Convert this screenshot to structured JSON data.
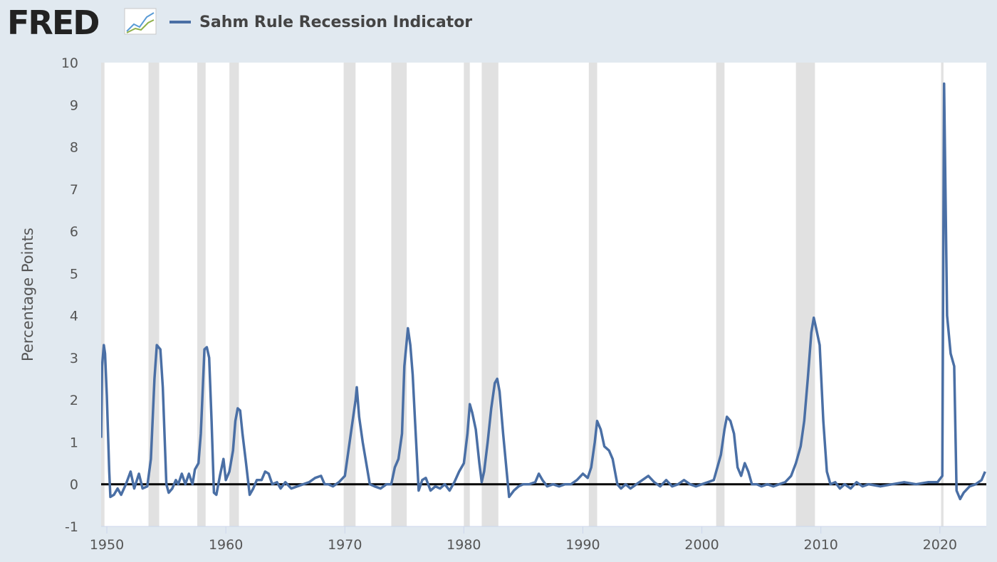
{
  "logo": "FRED",
  "chart_data": {
    "type": "line",
    "y_label": "Percentage Points",
    "xlim": [
      1949.52,
      2023.9
    ],
    "ylim": [
      -1,
      10
    ],
    "xticks": [
      1950,
      1960,
      1970,
      1980,
      1990,
      2000,
      2010,
      2020
    ],
    "yticks": [
      -1,
      0,
      1,
      2,
      3,
      4,
      5,
      6,
      7,
      8,
      9,
      10
    ],
    "grid": false,
    "legend": "top",
    "recessions": [
      [
        1948.9,
        1949.8
      ],
      [
        1953.5,
        1954.4
      ],
      [
        1957.6,
        1958.3
      ],
      [
        1960.3,
        1961.1
      ],
      [
        1969.9,
        1970.9
      ],
      [
        1973.9,
        1975.2
      ],
      [
        1980.0,
        1980.5
      ],
      [
        1981.5,
        1982.9
      ],
      [
        1990.5,
        1991.2
      ],
      [
        2001.2,
        2001.9
      ],
      [
        2007.9,
        2009.5
      ],
      [
        2020.1,
        2020.3
      ]
    ],
    "recession_color": "#e1e1e1",
    "x": [
      1949.52,
      1949.6,
      1949.75,
      1949.85,
      1950.0,
      1950.2,
      1950.3,
      1950.6,
      1950.9,
      1951.2,
      1951.6,
      1952.0,
      1952.3,
      1952.7,
      1953.0,
      1953.4,
      1953.7,
      1954.0,
      1954.2,
      1954.5,
      1954.7,
      1955.0,
      1955.2,
      1955.5,
      1955.8,
      1956.0,
      1956.3,
      1956.6,
      1956.9,
      1957.2,
      1957.4,
      1957.7,
      1957.9,
      1958.2,
      1958.4,
      1958.6,
      1958.8,
      1959.0,
      1959.2,
      1959.5,
      1959.8,
      1960.0,
      1960.3,
      1960.6,
      1960.8,
      1961.0,
      1961.2,
      1961.4,
      1961.7,
      1962.0,
      1962.3,
      1962.6,
      1963.0,
      1963.3,
      1963.6,
      1963.9,
      1964.3,
      1964.6,
      1965.0,
      1965.5,
      1966.0,
      1966.5,
      1967.0,
      1967.5,
      1968.0,
      1968.3,
      1968.6,
      1969.0,
      1969.5,
      1970.0,
      1970.3,
      1970.6,
      1970.9,
      1971.0,
      1971.2,
      1971.5,
      1971.8,
      1972.1,
      1972.5,
      1973.0,
      1973.5,
      1973.9,
      1974.2,
      1974.5,
      1974.8,
      1975.0,
      1975.3,
      1975.5,
      1975.7,
      1975.9,
      1976.2,
      1976.5,
      1976.8,
      1977.2,
      1977.6,
      1978.0,
      1978.4,
      1978.8,
      1979.2,
      1979.6,
      1980.0,
      1980.3,
      1980.5,
      1980.7,
      1981.0,
      1981.3,
      1981.5,
      1981.7,
      1982.0,
      1982.3,
      1982.6,
      1982.8,
      1983.0,
      1983.3,
      1983.6,
      1983.8,
      1984.2,
      1984.6,
      1985.0,
      1985.5,
      1986.0,
      1986.3,
      1986.6,
      1987.0,
      1987.5,
      1988.0,
      1988.5,
      1989.0,
      1989.5,
      1990.0,
      1990.4,
      1990.7,
      1991.0,
      1991.2,
      1991.5,
      1991.8,
      1992.2,
      1992.5,
      1992.9,
      1993.2,
      1993.6,
      1994.0,
      1994.5,
      1995.0,
      1995.5,
      1996.0,
      1996.5,
      1997.0,
      1997.5,
      1998.0,
      1998.5,
      1999.0,
      1999.5,
      2000.0,
      2000.5,
      2001.0,
      2001.3,
      2001.6,
      2001.9,
      2002.1,
      2002.4,
      2002.7,
      2003.0,
      2003.3,
      2003.6,
      2003.9,
      2004.2,
      2004.6,
      2005.0,
      2005.5,
      2006.0,
      2006.5,
      2007.0,
      2007.5,
      2007.9,
      2008.3,
      2008.6,
      2008.9,
      2009.2,
      2009.4,
      2009.6,
      2009.9,
      2010.2,
      2010.5,
      2010.8,
      2011.2,
      2011.6,
      2012.0,
      2012.5,
      2013.0,
      2013.5,
      2014.0,
      2015.0,
      2016.0,
      2017.0,
      2018.0,
      2019.0,
      2019.8,
      2020.2,
      2020.35,
      2020.6,
      2020.9,
      2021.2,
      2021.4,
      2021.7,
      2022.0,
      2022.5,
      2023.0,
      2023.5,
      2023.8
    ],
    "series": [
      {
        "name": "Sahm Rule Recession Indicator",
        "color": "#4a6fa5",
        "values": [
          1.1,
          2.8,
          3.3,
          3.1,
          2.1,
          0.3,
          -0.3,
          -0.25,
          -0.1,
          -0.25,
          0.0,
          0.3,
          -0.1,
          0.25,
          -0.1,
          -0.05,
          0.6,
          2.5,
          3.3,
          3.2,
          2.3,
          0.0,
          -0.2,
          -0.1,
          0.1,
          0.0,
          0.25,
          0.0,
          0.25,
          0.0,
          0.35,
          0.5,
          1.2,
          3.2,
          3.25,
          3.0,
          1.5,
          -0.2,
          -0.25,
          0.2,
          0.6,
          0.1,
          0.3,
          0.8,
          1.5,
          1.8,
          1.75,
          1.2,
          0.5,
          -0.25,
          -0.1,
          0.1,
          0.1,
          0.3,
          0.25,
          0.0,
          0.05,
          -0.1,
          0.05,
          -0.1,
          -0.05,
          0.0,
          0.05,
          0.15,
          0.2,
          0.0,
          0.0,
          -0.05,
          0.05,
          0.2,
          0.8,
          1.4,
          2.0,
          2.3,
          1.6,
          1.0,
          0.5,
          0.0,
          -0.05,
          -0.1,
          0.0,
          0.0,
          0.4,
          0.6,
          1.2,
          2.8,
          3.7,
          3.3,
          2.6,
          1.5,
          -0.15,
          0.1,
          0.15,
          -0.15,
          -0.05,
          -0.1,
          0.0,
          -0.15,
          0.05,
          0.3,
          0.5,
          1.2,
          1.9,
          1.7,
          1.3,
          0.5,
          0.05,
          0.3,
          1.0,
          1.8,
          2.4,
          2.5,
          2.2,
          1.2,
          0.3,
          -0.3,
          -0.15,
          -0.05,
          0.0,
          0.0,
          0.05,
          0.25,
          0.1,
          -0.05,
          0.0,
          -0.05,
          0.0,
          0.0,
          0.1,
          0.25,
          0.15,
          0.4,
          1.0,
          1.5,
          1.3,
          0.9,
          0.8,
          0.6,
          0.0,
          -0.1,
          0.0,
          -0.1,
          0.0,
          0.1,
          0.2,
          0.05,
          -0.05,
          0.1,
          -0.05,
          0.0,
          0.1,
          0.0,
          -0.05,
          0.0,
          0.05,
          0.1,
          0.4,
          0.7,
          1.3,
          1.6,
          1.5,
          1.2,
          0.4,
          0.2,
          0.5,
          0.3,
          0.0,
          0.0,
          -0.05,
          0.0,
          -0.05,
          0.0,
          0.05,
          0.2,
          0.5,
          0.9,
          1.5,
          2.5,
          3.6,
          3.95,
          3.7,
          3.3,
          1.5,
          0.3,
          0.0,
          0.05,
          -0.1,
          0.0,
          -0.1,
          0.05,
          -0.05,
          0.0,
          -0.05,
          0.0,
          0.05,
          0.0,
          0.05,
          0.05,
          0.2,
          9.5,
          4.0,
          3.1,
          2.8,
          -0.15,
          -0.35,
          -0.2,
          -0.05,
          0.0,
          0.1,
          0.3
        ]
      }
    ]
  }
}
